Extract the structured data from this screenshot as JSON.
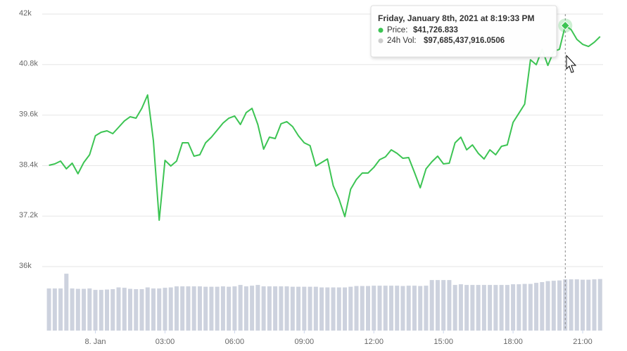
{
  "chart_data": {
    "type": "line",
    "x": [
      -2,
      -1.75,
      -1.5,
      -1.25,
      -1,
      -0.75,
      -0.5,
      -0.25,
      0,
      0.25,
      0.5,
      0.75,
      1,
      1.25,
      1.5,
      1.75,
      2,
      2.25,
      2.5,
      2.75,
      3,
      3.25,
      3.5,
      3.75,
      4,
      4.25,
      4.5,
      4.75,
      5,
      5.25,
      5.5,
      5.75,
      6,
      6.25,
      6.5,
      6.75,
      7,
      7.25,
      7.5,
      7.75,
      8,
      8.25,
      8.5,
      8.75,
      9,
      9.25,
      9.5,
      9.75,
      10,
      10.25,
      10.5,
      10.75,
      11,
      11.25,
      11.5,
      11.75,
      12,
      12.25,
      12.5,
      12.75,
      13,
      13.25,
      13.5,
      13.75,
      14,
      14.25,
      14.5,
      14.75,
      15,
      15.25,
      15.5,
      15.75,
      16,
      16.25,
      16.5,
      16.75,
      17,
      17.25,
      17.5,
      17.75,
      18,
      18.25,
      18.5,
      18.75,
      19,
      19.25,
      19.5,
      19.75,
      20,
      20.25,
      20.5,
      20.75,
      21,
      21.25,
      21.5,
      21.75
    ],
    "series": [
      {
        "color": "#3cc453",
        "values": [
          38407,
          38440,
          38507,
          38323,
          38457,
          38206,
          38474,
          38657,
          39109,
          39192,
          39226,
          39159,
          39309,
          39460,
          39560,
          39526,
          39760,
          40078,
          38992,
          37103,
          38524,
          38390,
          38507,
          38942,
          38942,
          38624,
          38657,
          38942,
          39075,
          39242,
          39409,
          39526,
          39577,
          39376,
          39660,
          39760,
          39376,
          38791,
          39075,
          39042,
          39393,
          39443,
          39326,
          39109,
          38942,
          38875,
          38390,
          38474,
          38557,
          37922,
          37604,
          37187,
          37838,
          38072,
          38223,
          38223,
          38357,
          38540,
          38607,
          38774,
          38691,
          38574,
          38591,
          38240,
          37872,
          38323,
          38490,
          38624,
          38440,
          38457,
          38942,
          39075,
          38774,
          38891,
          38691,
          38557,
          38774,
          38657,
          38858,
          38891,
          39426,
          39643,
          39861,
          40914,
          40797,
          41164,
          40780,
          41114,
          41164,
          41726.833,
          41632,
          41398,
          41281,
          41231,
          41331,
          41465
        ]
      },
      {
        "color": "#cdd2de",
        "type": "bar",
        "axis": "y2",
        "values": [
          80300000000.0,
          80300000000.0,
          80300000000.0,
          108400000000.0,
          80300000000.0,
          79600000000.0,
          79600000000.0,
          80300000000.0,
          77600000000.0,
          77600000000.0,
          78300000000.0,
          79000000000.0,
          82300000000.0,
          81600000000.0,
          79600000000.0,
          79000000000.0,
          79000000000.0,
          82300000000.0,
          80300000000.0,
          80300000000.0,
          81600000000.0,
          82300000000.0,
          84300000000.0,
          84300000000.0,
          84300000000.0,
          84300000000.0,
          84300000000.0,
          83600000000.0,
          83600000000.0,
          83600000000.0,
          84300000000.0,
          83600000000.0,
          84300000000.0,
          87000000000.0,
          84300000000.0,
          85600000000.0,
          87000000000.0,
          84300000000.0,
          84300000000.0,
          84300000000.0,
          84300000000.0,
          84300000000.0,
          83600000000.0,
          83600000000.0,
          83600000000.0,
          83600000000.0,
          83600000000.0,
          82300000000.0,
          82300000000.0,
          82300000000.0,
          82300000000.0,
          82300000000.0,
          83600000000.0,
          85000000000.0,
          85000000000.0,
          85000000000.0,
          85600000000.0,
          85600000000.0,
          85600000000.0,
          85600000000.0,
          85600000000.0,
          85000000000.0,
          85600000000.0,
          85600000000.0,
          85000000000.0,
          85600000000.0,
          96300000000.0,
          96300000000.0,
          96300000000.0,
          96300000000.0,
          87000000000.0,
          88300000000.0,
          87000000000.0,
          87000000000.0,
          87000000000.0,
          87000000000.0,
          87000000000.0,
          87000000000.0,
          87000000000.0,
          87000000000.0,
          88300000000.0,
          88300000000.0,
          89000000000.0,
          89000000000.0,
          91000000000.0,
          92400000000.0,
          94300000000.0,
          95000000000.0,
          95600000000.0,
          97685437916.0506,
          97700000000.0,
          97700000000.0,
          97000000000.0,
          97000000000.0,
          97700000000.0,
          98300000000.0
        ]
      }
    ],
    "xlim": [
      -2.2,
      22
    ],
    "xticks": [
      {
        "value": 0,
        "label": "8. Jan"
      },
      {
        "value": 3,
        "label": "03:00"
      },
      {
        "value": 6,
        "label": "06:00"
      },
      {
        "value": 9,
        "label": "09:00"
      },
      {
        "value": 12,
        "label": "12:00"
      },
      {
        "value": 15,
        "label": "15:00"
      },
      {
        "value": 18,
        "label": "18:00"
      },
      {
        "value": 21,
        "label": "21:00"
      }
    ],
    "ylim": [
      36000,
      42000
    ],
    "yticks": [
      {
        "value": 36000,
        "label": "36k"
      },
      {
        "value": 37200,
        "label": "37.2k"
      },
      {
        "value": 38400,
        "label": "38.4k"
      },
      {
        "value": 39600,
        "label": "39.6k"
      },
      {
        "value": 40800,
        "label": "40.8k"
      },
      {
        "value": 42000,
        "label": "42k"
      }
    ],
    "y2lim": [
      0,
      130000000000
    ],
    "grid": true,
    "tooltip": {
      "title": "Friday, January 8th, 2021 at 8:19:33 PM",
      "rows": [
        {
          "label": "Price:",
          "value": "$41,726.833"
        },
        {
          "label": "24h Vol:",
          "value": "$97,685,437,916.0506"
        }
      ]
    }
  }
}
